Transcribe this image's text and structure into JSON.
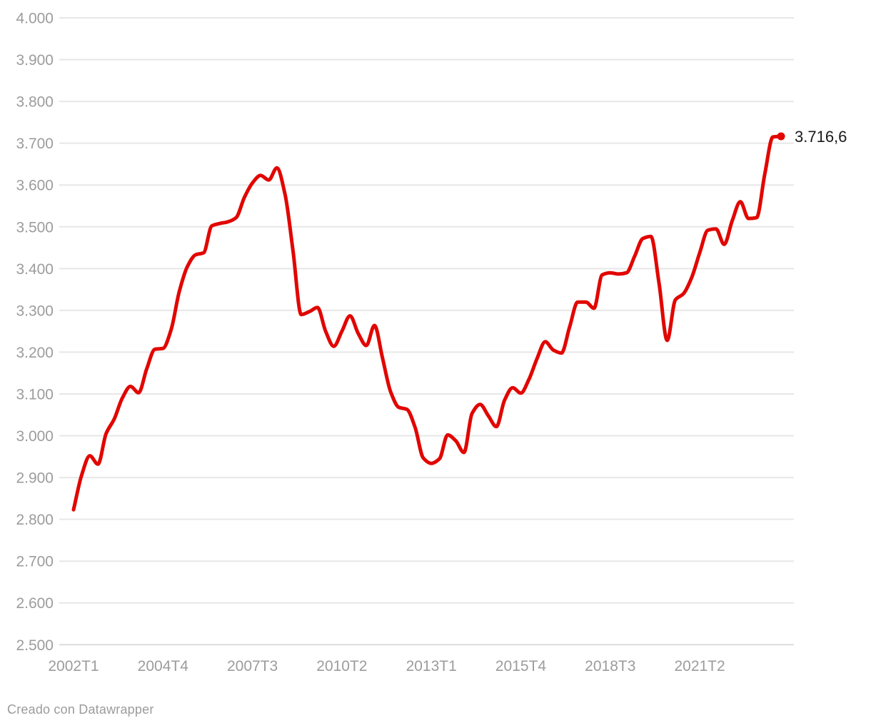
{
  "chart_data": {
    "type": "line",
    "title": "",
    "xlabel": "",
    "ylabel": "",
    "x": [
      "2002T1",
      "2002T2",
      "2002T3",
      "2002T4",
      "2003T1",
      "2003T2",
      "2003T3",
      "2003T4",
      "2004T1",
      "2004T2",
      "2004T3",
      "2004T4",
      "2005T1",
      "2005T2",
      "2005T3",
      "2005T4",
      "2006T1",
      "2006T2",
      "2006T3",
      "2006T4",
      "2007T1",
      "2007T2",
      "2007T3",
      "2007T4",
      "2008T1",
      "2008T2",
      "2008T3",
      "2008T4",
      "2009T1",
      "2009T2",
      "2009T3",
      "2009T4",
      "2010T1",
      "2010T2",
      "2010T3",
      "2010T4",
      "2011T1",
      "2011T2",
      "2011T3",
      "2011T4",
      "2012T1",
      "2012T2",
      "2012T3",
      "2012T4",
      "2013T1",
      "2013T2",
      "2013T3",
      "2013T4",
      "2014T1",
      "2014T2",
      "2014T3",
      "2014T4",
      "2015T1",
      "2015T2",
      "2015T3",
      "2015T4",
      "2016T1",
      "2016T2",
      "2016T3",
      "2016T4",
      "2017T1",
      "2017T2",
      "2017T3",
      "2017T4",
      "2018T1",
      "2018T2",
      "2018T3",
      "2018T4",
      "2019T1",
      "2019T2",
      "2019T3",
      "2019T4",
      "2020T1",
      "2020T2",
      "2020T3",
      "2020T4",
      "2021T1",
      "2021T2",
      "2021T3",
      "2021T4",
      "2022T1",
      "2022T2",
      "2022T3",
      "2022T4",
      "2023T1",
      "2023T2",
      "2023T3",
      "2023T4"
    ],
    "values": [
      2823,
      2906,
      2952,
      2932,
      3005,
      3040,
      3090,
      3118,
      3103,
      3160,
      3207,
      3209,
      3254,
      3345,
      3405,
      3433,
      3438,
      3502,
      3508,
      3512,
      3522,
      3570,
      3605,
      3623,
      3612,
      3641,
      3578,
      3440,
      3290,
      3297,
      3307,
      3250,
      3214,
      3250,
      3287,
      3245,
      3216,
      3264,
      3185,
      3105,
      3068,
      3063,
      3020,
      2947,
      2934,
      2945,
      3002,
      2988,
      2960,
      3053,
      3075,
      3048,
      3022,
      3085,
      3115,
      3102,
      3135,
      3185,
      3225,
      3205,
      3198,
      3260,
      3320,
      3320,
      3305,
      3385,
      3390,
      3387,
      3390,
      3430,
      3472,
      3477,
      3365,
      3228,
      3325,
      3340,
      3378,
      3438,
      3492,
      3495,
      3458,
      3515,
      3560,
      3520,
      3522,
      3626,
      3715,
      3716.6
    ],
    "ylim": [
      2500,
      4000
    ],
    "grid": true,
    "y_ticks": [
      {
        "label": "4.000",
        "value": 4000
      },
      {
        "label": "3.900",
        "value": 3900
      },
      {
        "label": "3.800",
        "value": 3800
      },
      {
        "label": "3.700",
        "value": 3700
      },
      {
        "label": "3.600",
        "value": 3600
      },
      {
        "label": "3.500",
        "value": 3500
      },
      {
        "label": "3.400",
        "value": 3400
      },
      {
        "label": "3.300",
        "value": 3300
      },
      {
        "label": "3.200",
        "value": 3200
      },
      {
        "label": "3.100",
        "value": 3100
      },
      {
        "label": "3.000",
        "value": 3000
      },
      {
        "label": "2.900",
        "value": 2900
      },
      {
        "label": "2.800",
        "value": 2800
      },
      {
        "label": "2.700",
        "value": 2700
      },
      {
        "label": "2.600",
        "value": 2600
      },
      {
        "label": "2.500",
        "value": 2500
      }
    ],
    "x_ticks": [
      {
        "label": "2002T1",
        "index": 0
      },
      {
        "label": "2004T4",
        "index": 11
      },
      {
        "label": "2007T3",
        "index": 22
      },
      {
        "label": "2010T2",
        "index": 33
      },
      {
        "label": "2013T1",
        "index": 44
      },
      {
        "label": "2015T4",
        "index": 55
      },
      {
        "label": "2018T3",
        "index": 66
      },
      {
        "label": "2021T2",
        "index": 77
      }
    ],
    "end_label": "3.716,6",
    "line_color": "#e10600",
    "grid_color": "#e7e7e7",
    "baseline_color": "#dcdcdc",
    "tick_label_color": "#9c9c9c",
    "end_label_color": "#1a1a1a",
    "legend_position": "none"
  },
  "footer": {
    "credit": "Creado con Datawrapper"
  }
}
